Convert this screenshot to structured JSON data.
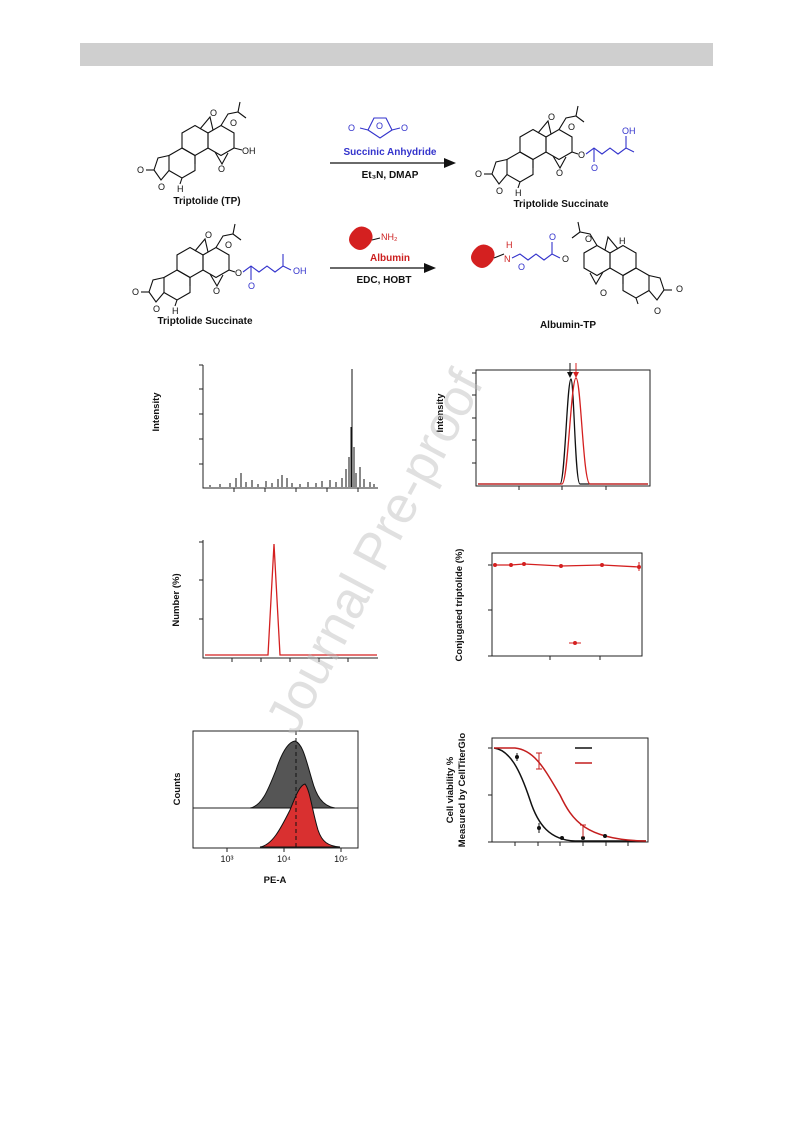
{
  "scheme": {
    "row1": {
      "reactant": {
        "name": "Triptolide (TP)",
        "atoms": [
          "O",
          "O",
          "O",
          "O",
          "O",
          "H",
          "OH"
        ]
      },
      "reagent": "Succinic Anhydride",
      "reagent_atoms": [
        "O",
        "O",
        "O"
      ],
      "conditions": "Et₃N, DMAP",
      "product": {
        "name": "Triptolide Succinate",
        "atoms": [
          "O",
          "O",
          "O",
          "O",
          "O",
          "H",
          "O",
          "O",
          "OH"
        ]
      }
    },
    "row2": {
      "reactant": {
        "name": "Triptolide Succinate",
        "atoms": [
          "O",
          "O",
          "O",
          "O",
          "O",
          "H",
          "O",
          "O",
          "OH"
        ]
      },
      "reagent": "Albumin",
      "reagent_atoms": [
        "NH₂"
      ],
      "conditions": "EDC, HOBT",
      "product": {
        "name": "Albumin-TP",
        "atoms": [
          "H",
          "N",
          "O",
          "O",
          "O",
          "O",
          "O",
          "O",
          "O",
          "H"
        ]
      }
    }
  },
  "panels": {
    "mass_spec": {
      "y_label": "Intensity"
    },
    "hplc": {
      "y_label": "Intensity"
    },
    "dls": {
      "y_label": "Number (%)"
    },
    "stability": {
      "y_label": "Conjugated triptolide (%)"
    },
    "flow": {
      "y_label": "Counts",
      "x_label": "PE-A",
      "x_ticks": [
        "10³",
        "10⁴",
        "10⁵"
      ]
    },
    "viability": {
      "y_label": [
        "Cell viability %",
        "Measured by CellTiterGlo"
      ]
    }
  },
  "watermark": "Journal Pre-proof"
}
